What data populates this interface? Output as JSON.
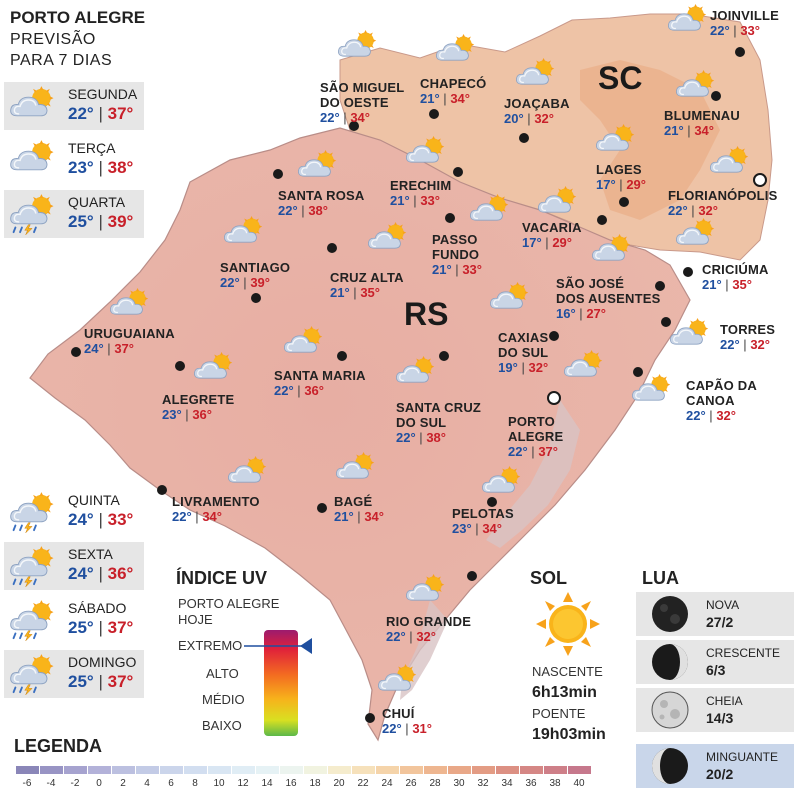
{
  "header": {
    "title": "PORTO ALEGRE",
    "subtitle_line1": "PREVISÃO",
    "subtitle_line2": "PARA 7 DIAS"
  },
  "forecast": [
    {
      "day": "SEGUNDA",
      "min": "22°",
      "max": "37°",
      "icon": "sun-cloud-icon"
    },
    {
      "day": "TERÇA",
      "min": "23°",
      "max": "38°",
      "icon": "sun-cloud-icon"
    },
    {
      "day": "QUARTA",
      "min": "25°",
      "max": "39°",
      "icon": "storm-sun-cloud-icon"
    },
    {
      "day": "QUINTA",
      "min": "24°",
      "max": "33°",
      "icon": "storm-sun-cloud-icon"
    },
    {
      "day": "SEXTA",
      "min": "24°",
      "max": "36°",
      "icon": "storm-sun-cloud-icon"
    },
    {
      "day": "SÁBADO",
      "min": "25°",
      "max": "37°",
      "icon": "storm-sun-cloud-icon"
    },
    {
      "day": "DOMINGO",
      "min": "25°",
      "max": "37°",
      "icon": "storm-sun-cloud-icon"
    }
  ],
  "separator": "|",
  "states": {
    "rs": "RS",
    "sc": "SC"
  },
  "cities": [
    {
      "name": "JOINVILLE",
      "name2": "",
      "min": "22°",
      "max": "33°"
    },
    {
      "name": "SÃO MIGUEL",
      "name2": "DO OESTE",
      "min": "22°",
      "max": "34°"
    },
    {
      "name": "CHAPECÓ",
      "name2": "",
      "min": "21°",
      "max": "34°"
    },
    {
      "name": "JOAÇABA",
      "name2": "",
      "min": "20°",
      "max": "32°"
    },
    {
      "name": "BLUMENAU",
      "name2": "",
      "min": "21°",
      "max": "34°"
    },
    {
      "name": "LAGES",
      "name2": "",
      "min": "17°",
      "max": "29°"
    },
    {
      "name": "FLORIANÓPOLIS",
      "name2": "",
      "min": "22°",
      "max": "32°"
    },
    {
      "name": "SANTA ROSA",
      "name2": "",
      "min": "22°",
      "max": "38°"
    },
    {
      "name": "ERECHIM",
      "name2": "",
      "min": "21°",
      "max": "33°"
    },
    {
      "name": "VACARIA",
      "name2": "",
      "min": "17°",
      "max": "29°"
    },
    {
      "name": "PASSO",
      "name2": "FUNDO",
      "min": "21°",
      "max": "33°"
    },
    {
      "name": "SANTIAGO",
      "name2": "",
      "min": "22°",
      "max": "39°"
    },
    {
      "name": "CRUZ ALTA",
      "name2": "",
      "min": "21°",
      "max": "35°"
    },
    {
      "name": "CRICIÚMA",
      "name2": "",
      "min": "21°",
      "max": "35°"
    },
    {
      "name": "SÃO JOSÉ",
      "name2": "DOS AUSENTES",
      "min": "16°",
      "max": "27°"
    },
    {
      "name": "URUGUAIANA",
      "name2": "",
      "min": "24°",
      "max": "37°"
    },
    {
      "name": "TORRES",
      "name2": "",
      "min": "22°",
      "max": "32°"
    },
    {
      "name": "CAXIAS",
      "name2": "DO SUL",
      "min": "19°",
      "max": "32°"
    },
    {
      "name": "SANTA MARIA",
      "name2": "",
      "min": "22°",
      "max": "36°"
    },
    {
      "name": "ALEGRETE",
      "name2": "",
      "min": "23°",
      "max": "36°"
    },
    {
      "name": "CAPÃO DA",
      "name2": "CANOA",
      "min": "22°",
      "max": "32°"
    },
    {
      "name": "SANTA CRUZ",
      "name2": "DO SUL",
      "min": "22°",
      "max": "38°"
    },
    {
      "name": "PORTO",
      "name2": "ALEGRE",
      "min": "22°",
      "max": "37°"
    },
    {
      "name": "LIVRAMENTO",
      "name2": "",
      "min": "22°",
      "max": "34°"
    },
    {
      "name": "BAGÉ",
      "name2": "",
      "min": "21°",
      "max": "34°"
    },
    {
      "name": "PELOTAS",
      "name2": "",
      "min": "23°",
      "max": "34°"
    },
    {
      "name": "RIO GRANDE",
      "name2": "",
      "min": "22°",
      "max": "32°"
    },
    {
      "name": "CHUÍ",
      "name2": "",
      "min": "22°",
      "max": "31°"
    }
  ],
  "uv": {
    "title": "ÍNDICE UV",
    "subtitle1": "PORTO ALEGRE",
    "subtitle2": "HOJE",
    "levels": [
      "EXTREMO",
      "ALTO",
      "MÉDIO",
      "BAIXO"
    ],
    "current_level": "EXTREMO"
  },
  "sun": {
    "title": "SOL",
    "sunrise_label": "NASCENTE",
    "sunrise": "6h13min",
    "sunset_label": "POENTE",
    "sunset": "19h03min"
  },
  "moon": {
    "title": "LUA",
    "phases": [
      {
        "name": "NOVA",
        "date": "27/2",
        "icon": "new-moon-icon"
      },
      {
        "name": "CRESCENTE",
        "date": "6/3",
        "icon": "waxing-moon-icon"
      },
      {
        "name": "CHEIA",
        "date": "14/3",
        "icon": "full-moon-icon"
      },
      {
        "name": "MINGUANTE",
        "date": "20/2",
        "icon": "waning-moon-icon"
      }
    ],
    "current_phase": "MINGUANTE"
  },
  "legend": {
    "title": "LEGENDA",
    "values": [
      "-6",
      "-4",
      "-2",
      "0",
      "2",
      "4",
      "6",
      "8",
      "10",
      "12",
      "14",
      "16",
      "18",
      "20",
      "22",
      "24",
      "26",
      "28",
      "30",
      "32",
      "34",
      "36",
      "38",
      "40"
    ],
    "colors": [
      "#8a86b8",
      "#9894c4",
      "#a6a3cf",
      "#b3b2d9",
      "#bcc0e0",
      "#c3cbe6",
      "#cbd5eb",
      "#d2def0",
      "#d9e6f3",
      "#e0edf5",
      "#e6f2f5",
      "#ecf4ef",
      "#f1f3e0",
      "#f5eccd",
      "#f6e1bb",
      "#f5d4aa",
      "#f2c59c",
      "#eeb690",
      "#e9a888",
      "#e39c84",
      "#dc9083",
      "#d58785",
      "#ce7f88",
      "#c6788c"
    ]
  },
  "colors": {
    "min_temp": "#1f4f9f",
    "max_temp": "#c8202a",
    "rs_fill": "#e9b4a8",
    "sc_fill": "#eebf9f"
  }
}
